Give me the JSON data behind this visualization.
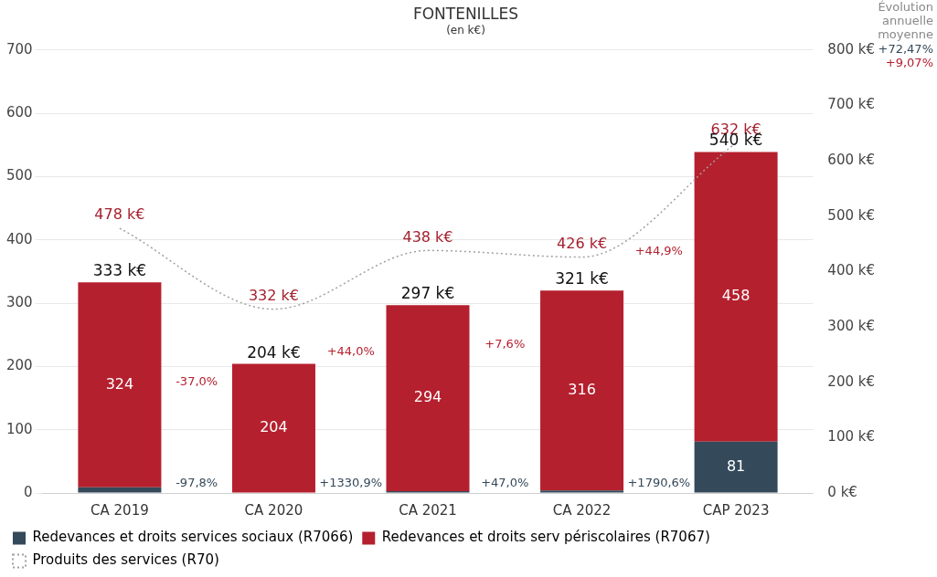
{
  "chart_data": {
    "type": "bar",
    "title": "FONTENILLES",
    "subtitle": "(en k€)",
    "categories": [
      "CA 2019",
      "CA 2020",
      "CA 2021",
      "CA 2022",
      "CAP 2023"
    ],
    "stacked": true,
    "series": [
      {
        "name": "Redevances et droits services sociaux (R7066)",
        "color": "#34495a",
        "values": [
          9,
          0,
          3,
          4,
          81
        ],
        "value_labels": [
          null,
          null,
          null,
          null,
          "81"
        ]
      },
      {
        "name": "Redevances et droits serv périscolaires (R7067)",
        "color": "#b5202e",
        "values": [
          324,
          204,
          294,
          316,
          458
        ],
        "value_labels": [
          "324",
          "204",
          "294",
          "316",
          "458"
        ]
      },
      {
        "name": "Produits des services (R70)",
        "type": "line",
        "axis": "y2",
        "color": "#a0a0a0",
        "line_style": "dotted",
        "values": [
          478,
          332,
          438,
          426,
          632
        ],
        "value_labels": [
          "478 k€",
          "332 k€",
          "438 k€",
          "426 k€",
          "632 k€"
        ]
      }
    ],
    "totals": [
      "333 k€",
      "204 k€",
      "297 k€",
      "321 k€",
      "540 k€"
    ],
    "ylim": [
      0,
      700
    ],
    "yticks": [
      0,
      100,
      200,
      300,
      400,
      500,
      600,
      700
    ],
    "y2lim": [
      0,
      800
    ],
    "y2ticks": [
      {
        "value": 0,
        "label": "0 k€"
      },
      {
        "value": 100,
        "label": "100 k€"
      },
      {
        "value": 200,
        "label": "200 k€"
      },
      {
        "value": 300,
        "label": "300 k€"
      },
      {
        "value": 400,
        "label": "400 k€"
      },
      {
        "value": 500,
        "label": "500 k€"
      },
      {
        "value": 600,
        "label": "600 k€"
      },
      {
        "value": 700,
        "label": "700 k€"
      },
      {
        "value": 800,
        "label": "800 k€"
      }
    ],
    "annotations": [
      "Évolution annuelle moyenne",
      "+72,47%",
      "+9,07%",
      "-37,0%",
      "+44,0%",
      "+7,6%",
      "+44,9%",
      "-97,8%",
      "+1330,9%",
      "+47,0%",
      "+1790,6%"
    ],
    "grid": "y",
    "legend": "bottom",
    "marker": "none"
  }
}
